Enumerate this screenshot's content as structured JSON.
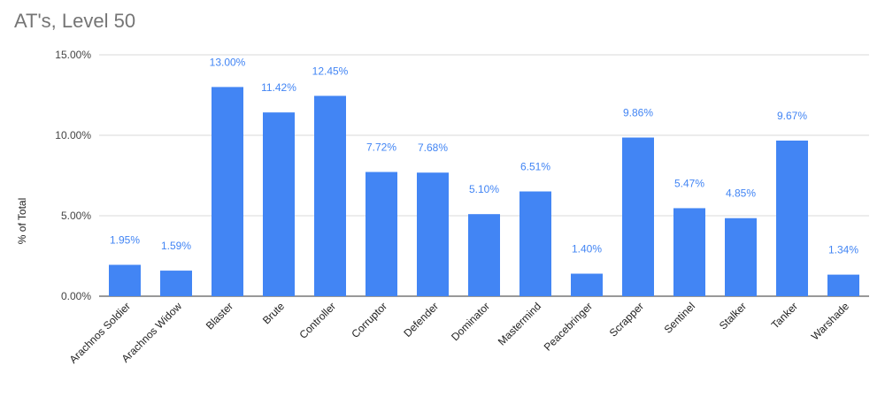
{
  "chart_data": {
    "type": "bar",
    "title": "AT's, Level 50",
    "xlabel": "",
    "ylabel": "% of Total",
    "ylim": [
      0,
      15
    ],
    "yticks": [
      "0.00%",
      "5.00%",
      "10.00%",
      "15.00%"
    ],
    "grid": true,
    "legend": "none",
    "bar_color": "#4285f4",
    "label_color": "#4285f4",
    "categories": [
      "Arachnos Soldier",
      "Arachnos Widow",
      "Blaster",
      "Brute",
      "Controller",
      "Corruptor",
      "Defender",
      "Dominator",
      "Mastermind",
      "Peacebringer",
      "Scrapper",
      "Sentinel",
      "Stalker",
      "Tanker",
      "Warshade"
    ],
    "values": [
      1.95,
      1.59,
      13.0,
      11.42,
      12.45,
      7.72,
      7.68,
      5.1,
      6.51,
      1.4,
      9.86,
      5.47,
      4.85,
      9.67,
      1.34
    ],
    "data_labels": [
      "1.95%",
      "1.59%",
      "13.00%",
      "11.42%",
      "12.45%",
      "7.72%",
      "7.68%",
      "5.10%",
      "6.51%",
      "1.40%",
      "9.86%",
      "5.47%",
      "4.85%",
      "9.67%",
      "1.34%"
    ]
  }
}
